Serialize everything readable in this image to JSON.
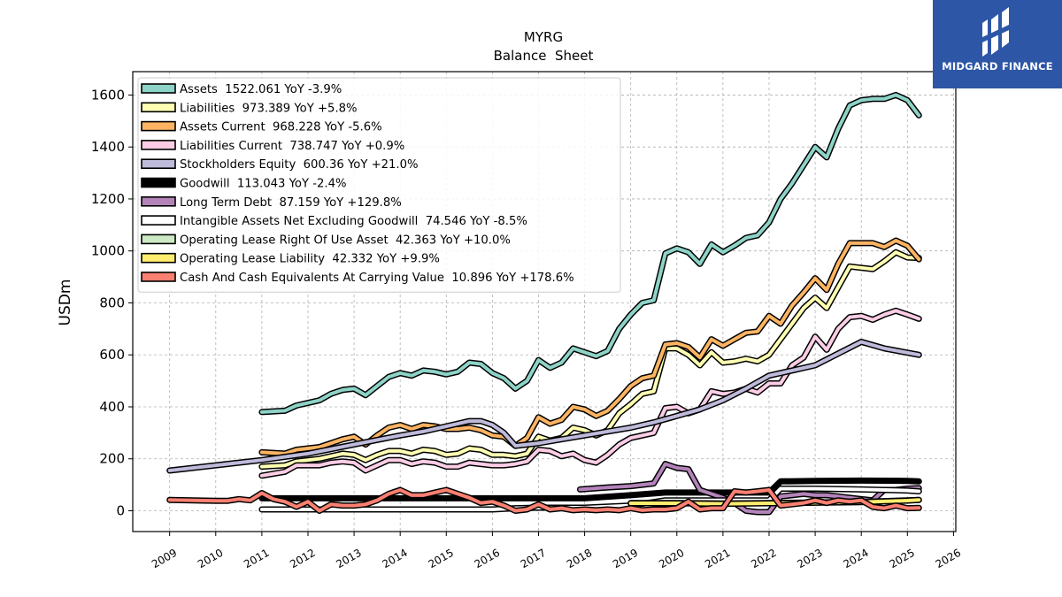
{
  "chart_data": {
    "type": "line",
    "title": "MYRG",
    "subtitle": "Balance  Sheet",
    "ylabel": "USDm",
    "xlabel": "",
    "xlim": [
      2008.2,
      2026.05
    ],
    "ylim": [
      -80,
      1690
    ],
    "grid": true,
    "legend_position": "top-left",
    "x_ticks": [
      "2009",
      "2010",
      "2011",
      "2012",
      "2013",
      "2014",
      "2015",
      "2016",
      "2017",
      "2018",
      "2019",
      "2020",
      "2021",
      "2022",
      "2023",
      "2024",
      "2025",
      "2026"
    ],
    "y_ticks": [
      "0",
      "200",
      "400",
      "600",
      "800",
      "1000",
      "1200",
      "1400",
      "1600"
    ],
    "series": [
      {
        "name": "Assets  1522.061 YoY -3.9%",
        "color": "#8dd3c7",
        "x": [
          2011.0,
          2011.5,
          2011.75,
          2012.0,
          2012.25,
          2012.5,
          2012.75,
          2013.0,
          2013.25,
          2013.5,
          2013.75,
          2014.0,
          2014.25,
          2014.5,
          2014.75,
          2015.0,
          2015.25,
          2015.5,
          2015.75,
          2016.0,
          2016.25,
          2016.5,
          2016.75,
          2017.0,
          2017.25,
          2017.5,
          2017.75,
          2018.0,
          2018.25,
          2018.5,
          2018.75,
          2019.0,
          2019.25,
          2019.5,
          2019.75,
          2020.0,
          2020.25,
          2020.5,
          2020.75,
          2021.0,
          2021.25,
          2021.5,
          2021.75,
          2022.0,
          2022.25,
          2022.5,
          2022.75,
          2023.0,
          2023.25,
          2023.5,
          2023.75,
          2024.0,
          2024.25,
          2024.5,
          2024.75,
          2025.0,
          2025.25
        ],
        "values": [
          380,
          385,
          405,
          415,
          425,
          450,
          465,
          470,
          445,
          480,
          515,
          530,
          520,
          540,
          535,
          525,
          535,
          570,
          565,
          530,
          510,
          470,
          500,
          580,
          550,
          570,
          625,
          610,
          595,
          615,
          700,
          755,
          800,
          810,
          990,
          1010,
          995,
          950,
          1025,
          995,
          1020,
          1050,
          1060,
          1110,
          1200,
          1260,
          1330,
          1400,
          1360,
          1470,
          1560,
          1580,
          1585,
          1585,
          1600,
          1580,
          1522
        ]
      },
      {
        "name": "Liabilities  973.389 YoY +5.8%",
        "color": "#ffffb3",
        "x": [
          2011.0,
          2011.5,
          2011.75,
          2012.0,
          2012.25,
          2012.5,
          2012.75,
          2013.0,
          2013.25,
          2013.5,
          2013.75,
          2014.0,
          2014.25,
          2014.5,
          2014.75,
          2015.0,
          2015.25,
          2015.5,
          2015.75,
          2016.0,
          2016.25,
          2016.5,
          2016.75,
          2017.0,
          2017.25,
          2017.5,
          2017.75,
          2018.0,
          2018.25,
          2018.5,
          2018.75,
          2019.0,
          2019.25,
          2019.5,
          2019.75,
          2020.0,
          2020.25,
          2020.5,
          2020.75,
          2021.0,
          2021.25,
          2021.5,
          2021.75,
          2022.0,
          2022.25,
          2022.5,
          2022.75,
          2023.0,
          2023.25,
          2023.5,
          2023.75,
          2024.0,
          2024.25,
          2024.5,
          2024.75,
          2025.0,
          2025.25
        ],
        "values": [
          170,
          175,
          190,
          195,
          200,
          210,
          220,
          215,
          195,
          215,
          230,
          230,
          220,
          235,
          230,
          215,
          220,
          240,
          235,
          215,
          215,
          210,
          220,
          285,
          270,
          280,
          320,
          310,
          290,
          310,
          375,
          410,
          450,
          460,
          625,
          625,
          600,
          560,
          610,
          570,
          575,
          585,
          575,
          600,
          660,
          720,
          780,
          820,
          780,
          860,
          940,
          935,
          930,
          960,
          995,
          975,
          973
        ]
      },
      {
        "name": "Assets Current  968.228 YoY -5.6%",
        "color": "#fdb462",
        "x": [
          2011.0,
          2011.5,
          2011.75,
          2012.0,
          2012.25,
          2012.5,
          2012.75,
          2013.0,
          2013.25,
          2013.5,
          2013.75,
          2014.0,
          2014.25,
          2014.5,
          2014.75,
          2015.0,
          2015.25,
          2015.5,
          2015.75,
          2016.0,
          2016.25,
          2016.5,
          2016.75,
          2017.0,
          2017.25,
          2017.5,
          2017.75,
          2018.0,
          2018.25,
          2018.5,
          2018.75,
          2019.0,
          2019.25,
          2019.5,
          2019.75,
          2020.0,
          2020.25,
          2020.5,
          2020.75,
          2021.0,
          2021.25,
          2021.5,
          2021.75,
          2022.0,
          2022.25,
          2022.5,
          2022.75,
          2023.0,
          2023.25,
          2023.5,
          2023.75,
          2024.0,
          2024.25,
          2024.5,
          2024.75,
          2025.0,
          2025.25
        ],
        "values": [
          225,
          220,
          235,
          240,
          245,
          260,
          275,
          285,
          255,
          290,
          320,
          330,
          315,
          330,
          325,
          315,
          315,
          320,
          310,
          290,
          285,
          250,
          280,
          360,
          335,
          350,
          400,
          390,
          365,
          385,
          430,
          480,
          510,
          520,
          640,
          645,
          630,
          590,
          660,
          635,
          660,
          685,
          690,
          750,
          720,
          790,
          840,
          895,
          850,
          950,
          1030,
          1030,
          1030,
          1015,
          1040,
          1020,
          968
        ]
      },
      {
        "name": "Liabilities Current  738.747 YoY +0.9%",
        "color": "#fccde5",
        "x": [
          2011.0,
          2011.5,
          2011.75,
          2012.0,
          2012.25,
          2012.5,
          2012.75,
          2013.0,
          2013.25,
          2013.5,
          2013.75,
          2014.0,
          2014.25,
          2014.5,
          2014.75,
          2015.0,
          2015.25,
          2015.5,
          2015.75,
          2016.0,
          2016.25,
          2016.5,
          2016.75,
          2017.0,
          2017.25,
          2017.5,
          2017.75,
          2018.0,
          2018.25,
          2018.5,
          2018.75,
          2019.0,
          2019.25,
          2019.5,
          2019.75,
          2020.0,
          2020.25,
          2020.5,
          2020.75,
          2021.0,
          2021.25,
          2021.5,
          2021.75,
          2022.0,
          2022.25,
          2022.5,
          2022.75,
          2023.0,
          2023.25,
          2023.5,
          2023.75,
          2024.0,
          2024.25,
          2024.5,
          2024.75,
          2025.0,
          2025.25
        ],
        "values": [
          135,
          150,
          175,
          175,
          175,
          185,
          190,
          185,
          155,
          175,
          195,
          195,
          180,
          190,
          185,
          170,
          170,
          185,
          180,
          175,
          175,
          180,
          190,
          235,
          230,
          210,
          220,
          195,
          185,
          215,
          255,
          280,
          290,
          300,
          395,
          400,
          375,
          390,
          460,
          450,
          455,
          470,
          455,
          490,
          490,
          560,
          590,
          670,
          620,
          700,
          745,
          750,
          735,
          755,
          770,
          755,
          739
        ]
      },
      {
        "name": "Stockholders Equity  600.36 YoY +21.0%",
        "color": "#bebada",
        "x": [
          2009.0,
          2010.0,
          2011.0,
          2012.0,
          2013.0,
          2014.0,
          2014.5,
          2015.0,
          2015.5,
          2015.75,
          2016.0,
          2016.25,
          2016.5,
          2017.0,
          2017.5,
          2018.0,
          2018.5,
          2019.0,
          2019.5,
          2020.0,
          2020.5,
          2021.0,
          2021.5,
          2022.0,
          2022.5,
          2023.0,
          2023.5,
          2024.0,
          2024.5,
          2025.25
        ],
        "values": [
          155,
          175,
          195,
          220,
          255,
          290,
          305,
          325,
          345,
          345,
          330,
          300,
          250,
          260,
          275,
          290,
          305,
          320,
          340,
          365,
          390,
          425,
          470,
          520,
          540,
          560,
          605,
          650,
          625,
          600
        ]
      },
      {
        "name": "Goodwill  113.043 YoY -2.4%",
        "color": "#000000",
        "x": [
          2011.0,
          2012.0,
          2013.0,
          2014.0,
          2015.0,
          2016.0,
          2017.0,
          2018.0,
          2019.0,
          2019.75,
          2020.5,
          2021.5,
          2022.0,
          2022.25,
          2023.0,
          2024.0,
          2025.0,
          2025.25
        ],
        "values": [
          48,
          48,
          48,
          48,
          48,
          48,
          48,
          48,
          60,
          70,
          70,
          70,
          70,
          113,
          115,
          116,
          115,
          113
        ]
      },
      {
        "name": "Long Term Debt  87.159 YoY +129.8%",
        "color": "#b383b9",
        "x": [
          2017.9,
          2018.5,
          2019.0,
          2019.25,
          2019.5,
          2019.75,
          2020.0,
          2020.25,
          2020.5,
          2020.75,
          2021.0,
          2021.25,
          2021.5,
          2021.75,
          2022.0,
          2022.25,
          2022.5,
          2022.75,
          2023.0,
          2023.25,
          2023.5,
          2023.75,
          2024.0,
          2024.25,
          2024.5,
          2024.75,
          2025.0,
          2025.25
        ],
        "values": [
          82,
          90,
          95,
          100,
          105,
          180,
          165,
          160,
          80,
          65,
          50,
          30,
          0,
          -5,
          -5,
          55,
          60,
          65,
          60,
          60,
          55,
          50,
          45,
          40,
          80,
          80,
          85,
          87
        ]
      },
      {
        "name": "Intangible Assets Net Excluding Goodwill  74.546 YoY -8.5%",
        "color": "#ffffff",
        "x": [
          2011.0,
          2012.0,
          2013.0,
          2014.0,
          2015.0,
          2016.0,
          2016.5,
          2017.0,
          2018.0,
          2019.0,
          2019.75,
          2020.5,
          2021.5,
          2022.0,
          2022.25,
          2023.0,
          2024.0,
          2025.0,
          2025.25
        ],
        "values": [
          5,
          5,
          5,
          5,
          5,
          5,
          10,
          12,
          12,
          20,
          40,
          40,
          40,
          40,
          85,
          85,
          82,
          78,
          75
        ]
      },
      {
        "name": "Operating Lease Right Of Use Asset  42.363 YoY +10.0%",
        "color": "#ccebc5",
        "x": [
          2019.0,
          2020.0,
          2021.0,
          2022.0,
          2023.0,
          2024.0,
          2025.0,
          2025.25
        ],
        "values": [
          30,
          30,
          28,
          30,
          32,
          34,
          40,
          42
        ]
      },
      {
        "name": "Operating Lease Liability  42.332 YoY +9.9%",
        "color": "#ffed6f",
        "x": [
          2019.0,
          2020.0,
          2021.0,
          2022.0,
          2023.0,
          2024.0,
          2025.0,
          2025.25
        ],
        "values": [
          29,
          29,
          27,
          29,
          31,
          33,
          39,
          42
        ]
      },
      {
        "name": "Cash And Cash Equivalents At Carrying Value  10.896 YoY +178.6%",
        "color": "#fb8072",
        "x": [
          2009.0,
          2009.5,
          2010.0,
          2010.25,
          2010.5,
          2010.75,
          2011.0,
          2011.25,
          2011.5,
          2011.75,
          2012.0,
          2012.25,
          2012.5,
          2012.75,
          2013.0,
          2013.25,
          2013.5,
          2013.75,
          2014.0,
          2014.25,
          2014.5,
          2014.75,
          2015.0,
          2015.25,
          2015.5,
          2015.75,
          2016.0,
          2016.25,
          2016.5,
          2016.75,
          2017.0,
          2017.25,
          2017.5,
          2017.75,
          2018.0,
          2018.25,
          2018.5,
          2018.75,
          2019.0,
          2019.25,
          2019.5,
          2019.75,
          2020.0,
          2020.25,
          2020.5,
          2020.75,
          2021.0,
          2021.25,
          2021.5,
          2021.75,
          2022.0,
          2022.25,
          2022.5,
          2022.75,
          2023.0,
          2023.25,
          2023.5,
          2023.75,
          2024.0,
          2024.25,
          2024.5,
          2024.75,
          2025.0,
          2025.25
        ],
        "values": [
          42,
          40,
          38,
          38,
          45,
          40,
          68,
          45,
          35,
          15,
          35,
          0,
          25,
          20,
          20,
          25,
          40,
          65,
          80,
          60,
          60,
          70,
          80,
          65,
          50,
          30,
          35,
          20,
          0,
          5,
          25,
          5,
          10,
          2,
          5,
          2,
          5,
          2,
          10,
          2,
          5,
          5,
          10,
          35,
          5,
          10,
          10,
          75,
          70,
          75,
          80,
          20,
          25,
          30,
          40,
          30,
          40,
          35,
          40,
          15,
          10,
          20,
          10,
          11
        ]
      }
    ]
  },
  "brand": {
    "name": "MIDGARD FINANCE",
    "bg_color": "#2d56a6"
  }
}
